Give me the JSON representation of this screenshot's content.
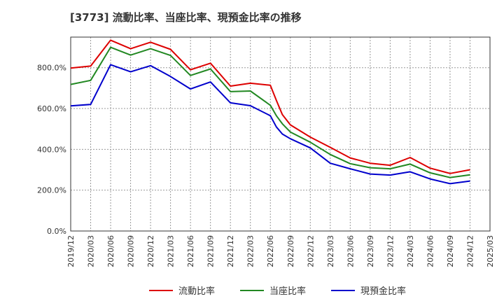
{
  "chart_data": {
    "type": "line",
    "title": "[3773]  流動比率、当座比率、現預金比率の推移",
    "xlabel": "",
    "ylabel": "",
    "ylim": [
      0,
      950
    ],
    "y_ticks": [
      "0.0%",
      "200.0%",
      "400.0%",
      "600.0%",
      "800.0%"
    ],
    "y_tick_values": [
      0,
      200,
      400,
      600,
      800
    ],
    "x_ticks": [
      "2019/12",
      "2020/03",
      "2020/06",
      "2020/09",
      "2020/12",
      "2021/03",
      "2021/06",
      "2021/09",
      "2021/12",
      "2022/03",
      "2022/06",
      "2022/09",
      "2022/12",
      "2023/03",
      "2023/06",
      "2023/09",
      "2023/12",
      "2024/03",
      "2024/06",
      "2024/09",
      "2024/12",
      "2025/03"
    ],
    "grid": true,
    "legend_position": "bottom",
    "series": [
      {
        "name": "流動比率",
        "color": "#dd0000",
        "points": [
          [
            0,
            798
          ],
          [
            1,
            808
          ],
          [
            2,
            935
          ],
          [
            3,
            893
          ],
          [
            4,
            925
          ],
          [
            5,
            890
          ],
          [
            6,
            790
          ],
          [
            7,
            822
          ],
          [
            8,
            710
          ],
          [
            9,
            724
          ],
          [
            10,
            714
          ],
          [
            10.3,
            640
          ],
          [
            10.6,
            570
          ],
          [
            11,
            520
          ],
          [
            12,
            460
          ],
          [
            13,
            410
          ],
          [
            14,
            358
          ],
          [
            15,
            332
          ],
          [
            16,
            322
          ],
          [
            17,
            360
          ],
          [
            18,
            308
          ],
          [
            19,
            282
          ],
          [
            20,
            300
          ]
        ]
      },
      {
        "name": "当座比率",
        "color": "#228822",
        "points": [
          [
            0,
            718
          ],
          [
            1,
            738
          ],
          [
            2,
            900
          ],
          [
            3,
            862
          ],
          [
            4,
            893
          ],
          [
            5,
            860
          ],
          [
            6,
            762
          ],
          [
            7,
            794
          ],
          [
            8,
            683
          ],
          [
            9,
            686
          ],
          [
            10,
            616
          ],
          [
            10.3,
            565
          ],
          [
            10.6,
            525
          ],
          [
            11,
            485
          ],
          [
            12,
            435
          ],
          [
            13,
            375
          ],
          [
            14,
            330
          ],
          [
            15,
            310
          ],
          [
            16,
            305
          ],
          [
            17,
            328
          ],
          [
            18,
            285
          ],
          [
            19,
            262
          ],
          [
            20,
            275
          ]
        ]
      },
      {
        "name": "現預金比率",
        "color": "#0000cc",
        "points": [
          [
            0,
            613
          ],
          [
            1,
            620
          ],
          [
            2,
            815
          ],
          [
            3,
            780
          ],
          [
            4,
            810
          ],
          [
            5,
            757
          ],
          [
            6,
            696
          ],
          [
            7,
            730
          ],
          [
            8,
            628
          ],
          [
            9,
            614
          ],
          [
            10,
            565
          ],
          [
            10.3,
            510
          ],
          [
            10.6,
            475
          ],
          [
            11,
            452
          ],
          [
            12,
            407
          ],
          [
            13,
            332
          ],
          [
            14,
            305
          ],
          [
            15,
            279
          ],
          [
            16,
            274
          ],
          [
            17,
            290
          ],
          [
            18,
            255
          ],
          [
            19,
            232
          ],
          [
            20,
            245
          ]
        ]
      }
    ]
  }
}
